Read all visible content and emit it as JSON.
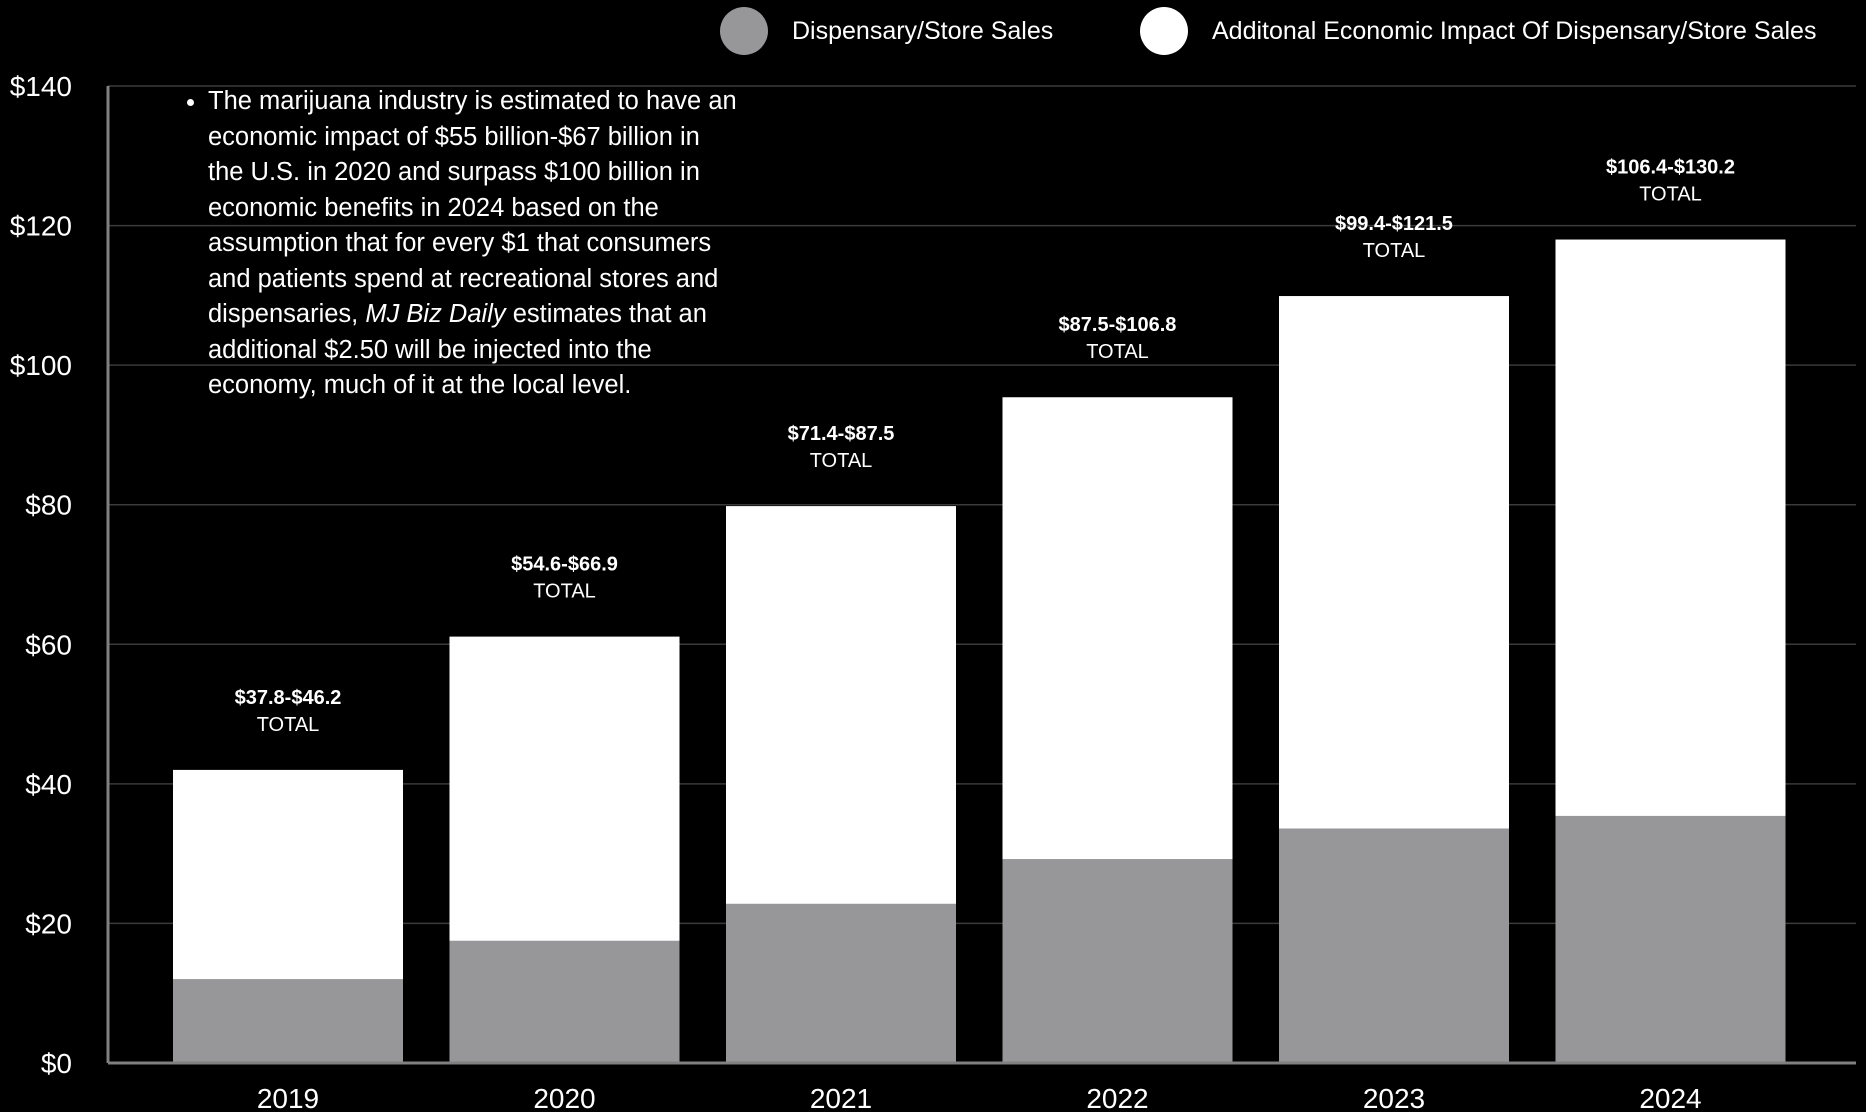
{
  "legend": {
    "sales_label": "Dispensary/Store Sales",
    "impact_label": "Additonal Economic Impact Of Dispensary/Store Sales"
  },
  "note": {
    "text_before": "The marijuana industry is estimated to have an economic impact of $55 billion-$67 billion in the U.S. in 2020 and surpass $100 billion in economic benefits in 2024 based on the assumption that for every $1 that consumers and patients spend at recreational stores and dispensaries, ",
    "italic": "MJ Biz Daily",
    "text_after": " estimates that an additional $2.50 will be injected into the economy, much of it at the local level."
  },
  "colors": {
    "background": "#000000",
    "sales": "#97979a",
    "impact": "#ffffff",
    "gridline": "#3a3a3a",
    "axis": "#808080"
  },
  "chart_data": {
    "type": "bar",
    "stacked": true,
    "categories": [
      "2019",
      "2020",
      "2021",
      "2022",
      "2023",
      "2024"
    ],
    "series": [
      {
        "name": "Dispensary/Store Sales",
        "values": [
          12,
          17.5,
          22.8,
          29.2,
          33.6,
          35.4
        ]
      },
      {
        "name": "Additonal Economic Impact Of Dispensary/Store Sales",
        "values": [
          30,
          43.6,
          57,
          66.2,
          76.3,
          82.6
        ]
      }
    ],
    "totals_labels": [
      "$37.8-$46.2",
      "$54.6-$66.9",
      "$71.4-$87.5",
      "$87.5-$106.8",
      "$99.4-$121.5",
      "$106.4-$130.2"
    ],
    "total_word": "TOTAL",
    "ylim": [
      0,
      140
    ],
    "yticks": [
      0,
      20,
      40,
      60,
      80,
      100,
      120,
      140
    ],
    "ytick_labels": [
      "$0",
      "$20",
      "$40",
      "$60",
      "$80",
      "$100",
      "$120",
      "$140"
    ],
    "grid": true,
    "legend_position": "top-right"
  }
}
